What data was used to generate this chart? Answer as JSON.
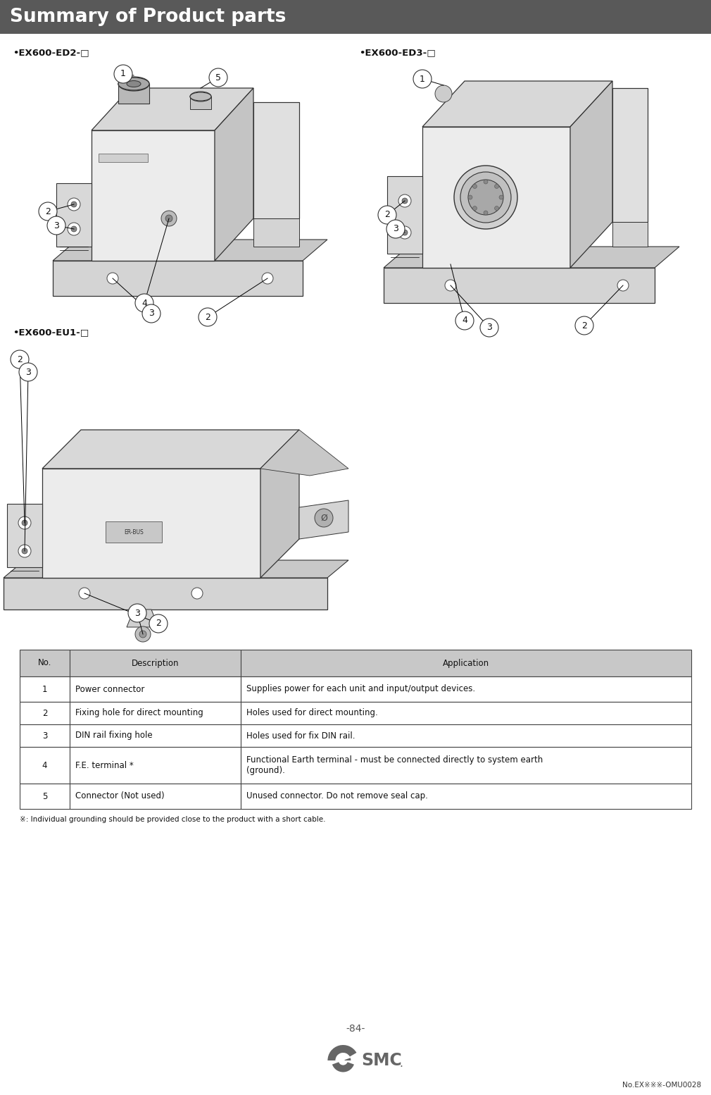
{
  "title": "Summary of Product parts",
  "title_bg": "#595959",
  "title_color": "#ffffff",
  "label_ed2": "•EX600-ED2-□",
  "label_ed3": "•EX600-ED3-□",
  "label_eu1": "•EX600-EU1-□",
  "table_header": [
    "No.",
    "Description",
    "Application"
  ],
  "table_header_bg": "#c8c8c8",
  "table_rows": [
    [
      "1",
      "Power connector",
      "Supplies power for each unit and input/output devices."
    ],
    [
      "2",
      "Fixing hole for direct mounting",
      "Holes used for direct mounting."
    ],
    [
      "3",
      "DIN rail fixing hole",
      "Holes used for fix DIN rail."
    ],
    [
      "4",
      "F.E. terminal *",
      "Functional Earth terminal - must be connected directly to system earth\n(ground)."
    ],
    [
      "5",
      "Connector (Not used)",
      "Unused connector. Do not remove seal cap."
    ]
  ],
  "footnote": "※: Individual grounding should be provided close to the product with a short cable.",
  "page_number": "-84-",
  "doc_number": "No.EX※※※-OMU0028",
  "bg_color": "#ffffff",
  "border_color": "#444444",
  "label_fontsize": 9.5,
  "table_fontsize": 8.5
}
